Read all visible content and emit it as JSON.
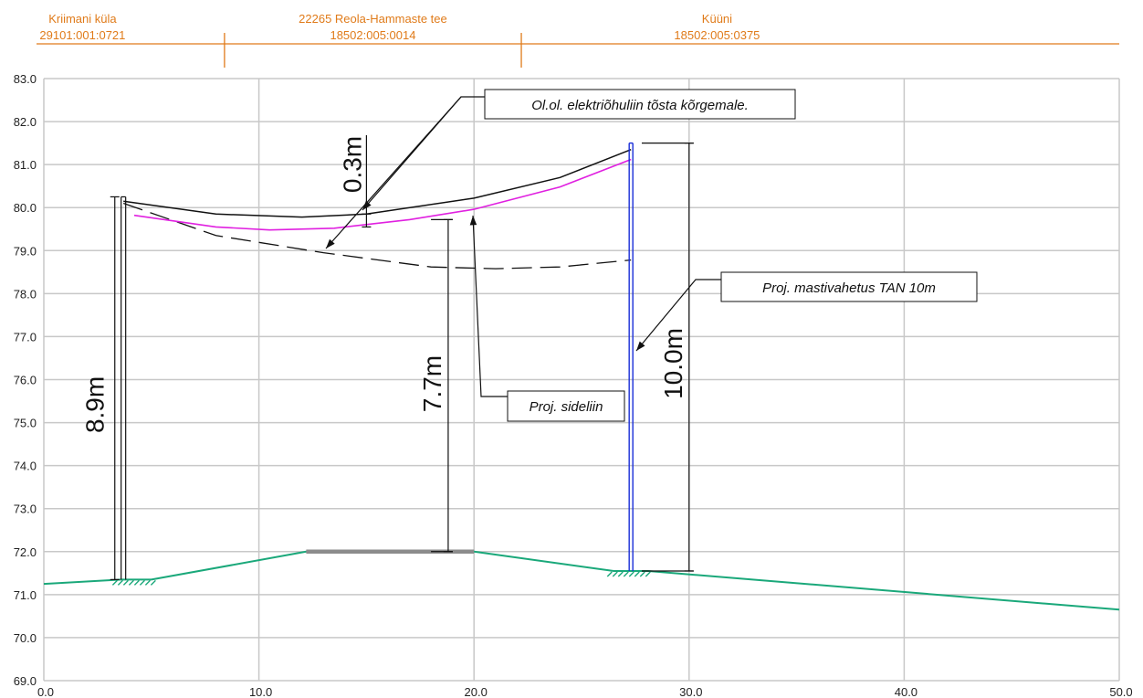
{
  "chart_data": {
    "type": "line",
    "xlim": [
      0,
      50
    ],
    "ylim": [
      69,
      83
    ],
    "x_ticks": [
      "0.0",
      "10.0",
      "20.0",
      "30.0",
      "40.0",
      "50.0"
    ],
    "y_ticks": [
      "69.0",
      "70.0",
      "71.0",
      "72.0",
      "73.0",
      "74.0",
      "75.0",
      "76.0",
      "77.0",
      "78.0",
      "79.0",
      "80.0",
      "81.0",
      "82.0",
      "83.0"
    ],
    "grid": true,
    "ground_profile": [
      [
        0,
        71.25
      ],
      [
        3.6,
        71.35
      ],
      [
        5.0,
        71.35
      ],
      [
        12.2,
        72.0
      ],
      [
        20.0,
        72.0
      ],
      [
        26.5,
        71.55
      ],
      [
        28.1,
        71.55
      ],
      [
        50.0,
        70.65
      ]
    ],
    "road_surface": [
      [
        12.2,
        72.0
      ],
      [
        20.0,
        72.0
      ]
    ],
    "existing_power_line": [
      [
        3.7,
        80.1
      ],
      [
        8.0,
        79.35
      ],
      [
        13.0,
        78.95
      ],
      [
        18.0,
        78.62
      ],
      [
        21.0,
        78.58
      ],
      [
        24.0,
        78.62
      ],
      [
        27.3,
        78.78
      ]
    ],
    "raised_power_line": [
      [
        3.7,
        80.15
      ],
      [
        8.0,
        79.85
      ],
      [
        12.0,
        79.78
      ],
      [
        15.0,
        79.85
      ],
      [
        20.0,
        80.22
      ],
      [
        24.0,
        80.7
      ],
      [
        27.3,
        81.35
      ]
    ],
    "proposed_comm_line": [
      [
        4.2,
        79.82
      ],
      [
        8.0,
        79.55
      ],
      [
        10.5,
        79.48
      ],
      [
        13.5,
        79.52
      ],
      [
        17.0,
        79.72
      ],
      [
        20.0,
        79.96
      ],
      [
        24.0,
        80.48
      ],
      [
        27.3,
        81.12
      ]
    ],
    "pole_existing": {
      "x": 3.7,
      "base": 71.35,
      "top": 80.25
    },
    "pole_proposed": {
      "x": 27.3,
      "base": 71.55,
      "top": 81.5
    },
    "parcels": [
      {
        "name": "Kriimani küla",
        "code": "29101:001:0721"
      },
      {
        "name": "22265 Reola-Hammaste tee",
        "code": "18502:005:0014"
      },
      {
        "name": "Küüni",
        "code": "18502:005:0375"
      }
    ],
    "parcel_boundaries": [
      8.4,
      22.2
    ],
    "dimensions": [
      {
        "label": "8.9m",
        "x": 3.3,
        "from": 71.35,
        "to": 80.25
      },
      {
        "label": "0.3m",
        "x": 15.0,
        "from": 79.55,
        "to": 79.85
      },
      {
        "label": "7.7m",
        "x": 18.8,
        "from": 72.0,
        "to": 79.72
      },
      {
        "label": "10.0m",
        "x": 30.0,
        "from": 71.55,
        "to": 81.5
      }
    ],
    "annotations": [
      {
        "text": "Ol.ol. elektriõhuliin tõsta kõrgemale."
      },
      {
        "text": "Proj. mastivahetus TAN 10m"
      },
      {
        "text": "Proj. sideliin"
      }
    ]
  },
  "colors": {
    "grid": "#c8c8c8",
    "ground": "#1aa87a",
    "road": "#8c8c8c",
    "parcel": "#e07b1a",
    "comm_line": "#e020e0",
    "pole_new": "#1a2ed8",
    "ink": "#111111"
  }
}
